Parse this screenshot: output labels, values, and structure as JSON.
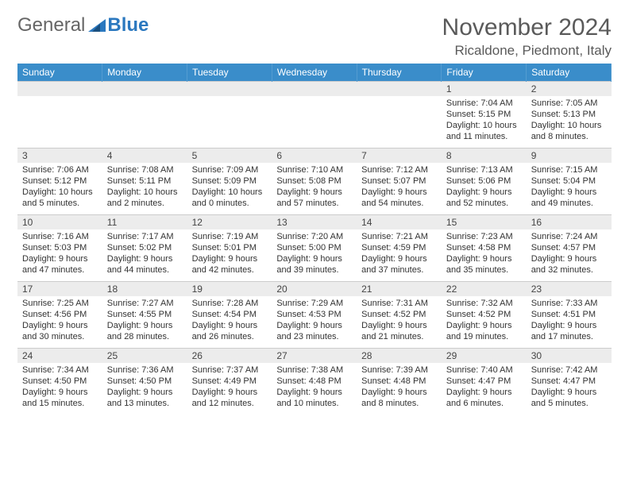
{
  "brand": {
    "part1": "General",
    "part2": "Blue"
  },
  "colors": {
    "header_bg": "#3a8dca",
    "daynum_bg": "#ececec",
    "text": "#333333",
    "title": "#5a5a5a",
    "rule": "#cccccc"
  },
  "title": "November 2024",
  "location": "Ricaldone, Piedmont, Italy",
  "day_headers": [
    "Sunday",
    "Monday",
    "Tuesday",
    "Wednesday",
    "Thursday",
    "Friday",
    "Saturday"
  ],
  "weeks": [
    [
      null,
      null,
      null,
      null,
      null,
      {
        "n": "1",
        "sunrise": "7:04 AM",
        "sunset": "5:15 PM",
        "daylight": "10 hours and 11 minutes."
      },
      {
        "n": "2",
        "sunrise": "7:05 AM",
        "sunset": "5:13 PM",
        "daylight": "10 hours and 8 minutes."
      }
    ],
    [
      {
        "n": "3",
        "sunrise": "7:06 AM",
        "sunset": "5:12 PM",
        "daylight": "10 hours and 5 minutes."
      },
      {
        "n": "4",
        "sunrise": "7:08 AM",
        "sunset": "5:11 PM",
        "daylight": "10 hours and 2 minutes."
      },
      {
        "n": "5",
        "sunrise": "7:09 AM",
        "sunset": "5:09 PM",
        "daylight": "10 hours and 0 minutes."
      },
      {
        "n": "6",
        "sunrise": "7:10 AM",
        "sunset": "5:08 PM",
        "daylight": "9 hours and 57 minutes."
      },
      {
        "n": "7",
        "sunrise": "7:12 AM",
        "sunset": "5:07 PM",
        "daylight": "9 hours and 54 minutes."
      },
      {
        "n": "8",
        "sunrise": "7:13 AM",
        "sunset": "5:06 PM",
        "daylight": "9 hours and 52 minutes."
      },
      {
        "n": "9",
        "sunrise": "7:15 AM",
        "sunset": "5:04 PM",
        "daylight": "9 hours and 49 minutes."
      }
    ],
    [
      {
        "n": "10",
        "sunrise": "7:16 AM",
        "sunset": "5:03 PM",
        "daylight": "9 hours and 47 minutes."
      },
      {
        "n": "11",
        "sunrise": "7:17 AM",
        "sunset": "5:02 PM",
        "daylight": "9 hours and 44 minutes."
      },
      {
        "n": "12",
        "sunrise": "7:19 AM",
        "sunset": "5:01 PM",
        "daylight": "9 hours and 42 minutes."
      },
      {
        "n": "13",
        "sunrise": "7:20 AM",
        "sunset": "5:00 PM",
        "daylight": "9 hours and 39 minutes."
      },
      {
        "n": "14",
        "sunrise": "7:21 AM",
        "sunset": "4:59 PM",
        "daylight": "9 hours and 37 minutes."
      },
      {
        "n": "15",
        "sunrise": "7:23 AM",
        "sunset": "4:58 PM",
        "daylight": "9 hours and 35 minutes."
      },
      {
        "n": "16",
        "sunrise": "7:24 AM",
        "sunset": "4:57 PM",
        "daylight": "9 hours and 32 minutes."
      }
    ],
    [
      {
        "n": "17",
        "sunrise": "7:25 AM",
        "sunset": "4:56 PM",
        "daylight": "9 hours and 30 minutes."
      },
      {
        "n": "18",
        "sunrise": "7:27 AM",
        "sunset": "4:55 PM",
        "daylight": "9 hours and 28 minutes."
      },
      {
        "n": "19",
        "sunrise": "7:28 AM",
        "sunset": "4:54 PM",
        "daylight": "9 hours and 26 minutes."
      },
      {
        "n": "20",
        "sunrise": "7:29 AM",
        "sunset": "4:53 PM",
        "daylight": "9 hours and 23 minutes."
      },
      {
        "n": "21",
        "sunrise": "7:31 AM",
        "sunset": "4:52 PM",
        "daylight": "9 hours and 21 minutes."
      },
      {
        "n": "22",
        "sunrise": "7:32 AM",
        "sunset": "4:52 PM",
        "daylight": "9 hours and 19 minutes."
      },
      {
        "n": "23",
        "sunrise": "7:33 AM",
        "sunset": "4:51 PM",
        "daylight": "9 hours and 17 minutes."
      }
    ],
    [
      {
        "n": "24",
        "sunrise": "7:34 AM",
        "sunset": "4:50 PM",
        "daylight": "9 hours and 15 minutes."
      },
      {
        "n": "25",
        "sunrise": "7:36 AM",
        "sunset": "4:50 PM",
        "daylight": "9 hours and 13 minutes."
      },
      {
        "n": "26",
        "sunrise": "7:37 AM",
        "sunset": "4:49 PM",
        "daylight": "9 hours and 12 minutes."
      },
      {
        "n": "27",
        "sunrise": "7:38 AM",
        "sunset": "4:48 PM",
        "daylight": "9 hours and 10 minutes."
      },
      {
        "n": "28",
        "sunrise": "7:39 AM",
        "sunset": "4:48 PM",
        "daylight": "9 hours and 8 minutes."
      },
      {
        "n": "29",
        "sunrise": "7:40 AM",
        "sunset": "4:47 PM",
        "daylight": "9 hours and 6 minutes."
      },
      {
        "n": "30",
        "sunrise": "7:42 AM",
        "sunset": "4:47 PM",
        "daylight": "9 hours and 5 minutes."
      }
    ]
  ],
  "labels": {
    "sunrise": "Sunrise:",
    "sunset": "Sunset:",
    "daylight": "Daylight:"
  }
}
